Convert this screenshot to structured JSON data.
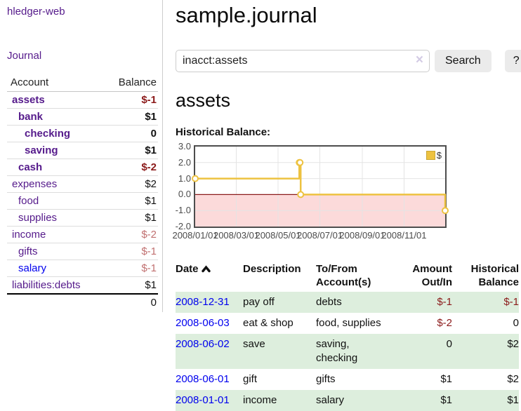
{
  "colors": {
    "link_purple": "#551a8b",
    "link_blue": "#0000ee",
    "negative_strong": "#8b1a1a",
    "negative_soft": "#c17070",
    "row_stripe_green": "#ddeedd",
    "chart_line_gold": "#edc240"
  },
  "sidebar": {
    "app_title": "hledger-web",
    "journal_link": "Journal",
    "accounts_table": {
      "account_header": "Account",
      "balance_header": "Balance",
      "rows": [
        {
          "name": "assets",
          "indent": 1,
          "bold": true,
          "balance": "$-1",
          "negative": "strong"
        },
        {
          "name": "bank",
          "indent": 2,
          "bold": true,
          "balance": "$1"
        },
        {
          "name": "checking",
          "indent": 3,
          "bold": true,
          "balance": "0"
        },
        {
          "name": "saving",
          "indent": 3,
          "bold": true,
          "balance": "$1"
        },
        {
          "name": "cash",
          "indent": 2,
          "bold": true,
          "balance": "$-2",
          "negative": "strong"
        },
        {
          "name": "expenses",
          "indent": 1,
          "bold": false,
          "balance": "$2"
        },
        {
          "name": "food",
          "indent": 2,
          "bold": false,
          "balance": "$1"
        },
        {
          "name": "supplies",
          "indent": 2,
          "bold": false,
          "balance": "$1"
        },
        {
          "name": "income",
          "indent": 1,
          "bold": false,
          "balance": "$-2",
          "negative": "soft"
        },
        {
          "name": "gifts",
          "indent": 2,
          "bold": false,
          "balance": "$-1",
          "negative": "soft"
        },
        {
          "name": "salary",
          "indent": 2,
          "bold": false,
          "balance": "$-1",
          "negative": "soft",
          "link_color": "blue"
        },
        {
          "name": "liabilities:debts",
          "indent": 1,
          "bold": false,
          "balance": "$1"
        }
      ],
      "total": "0"
    }
  },
  "main": {
    "title": "sample.journal",
    "search": {
      "value": "inacct:assets",
      "clear_icon": "×",
      "search_button": "Search",
      "help_button": "?"
    },
    "account_heading": "assets",
    "section_label": "Historical Balance:"
  },
  "chart_data": {
    "type": "line",
    "step": true,
    "title": "Historical Balance",
    "xlabel": "",
    "ylabel": "",
    "ylim": [
      -2,
      3
    ],
    "x_range": [
      "2008-01-01",
      "2008-12-31"
    ],
    "grid": true,
    "legend_position": "top-right",
    "negative_region_fill": "#fcdada",
    "zero_line_color": "#8b1a1a",
    "series": [
      {
        "name": "$",
        "color": "#edc240",
        "points": [
          [
            "2008-01-01",
            1
          ],
          [
            "2008-06-01",
            2
          ],
          [
            "2008-06-02",
            2
          ],
          [
            "2008-06-03",
            0
          ],
          [
            "2008-12-31",
            -1
          ]
        ]
      }
    ],
    "x_ticks": [
      {
        "date": "2008-01-01",
        "label": "2008/01/01"
      },
      {
        "date": "2008-03-01",
        "label": "2008/03/01"
      },
      {
        "date": "2008-05-01",
        "label": "2008/05/01"
      },
      {
        "date": "2008-07-01",
        "label": "2008/07/01"
      },
      {
        "date": "2008-09-01",
        "label": "2008/09/01"
      },
      {
        "date": "2008-11-01",
        "label": "2008/11/01"
      }
    ],
    "y_ticks": [
      {
        "value": 3,
        "label": "3.0"
      },
      {
        "value": 2,
        "label": "2.0"
      },
      {
        "value": 1,
        "label": "1.0"
      },
      {
        "value": 0,
        "label": "0.0"
      },
      {
        "value": -1,
        "label": "-1.0"
      },
      {
        "value": -2,
        "label": "-2.0"
      }
    ]
  },
  "transactions": {
    "headers": {
      "date": "Date",
      "description": "Description",
      "accounts": "To/From Account(s)",
      "amount": "Amount Out/In",
      "balance": "Historical Balance"
    },
    "sort": {
      "column": "date",
      "direction": "ascending"
    },
    "rows": [
      {
        "date": "2008-12-31",
        "description": "pay off",
        "accounts": "debts",
        "amount": "$-1",
        "amount_negative": true,
        "balance": "$-1",
        "balance_negative": true
      },
      {
        "date": "2008-06-03",
        "description": "eat & shop",
        "accounts": "food, supplies",
        "amount": "$-2",
        "amount_negative": true,
        "balance": "0",
        "balance_negative": false
      },
      {
        "date": "2008-06-02",
        "description": "save",
        "accounts": "saving, checking",
        "amount": "0",
        "amount_negative": false,
        "balance": "$2",
        "balance_negative": false
      },
      {
        "date": "2008-06-01",
        "description": "gift",
        "accounts": "gifts",
        "amount": "$1",
        "amount_negative": false,
        "balance": "$2",
        "balance_negative": false
      },
      {
        "date": "2008-01-01",
        "description": "income",
        "accounts": "salary",
        "amount": "$1",
        "amount_negative": false,
        "balance": "$1",
        "balance_negative": false
      }
    ]
  }
}
